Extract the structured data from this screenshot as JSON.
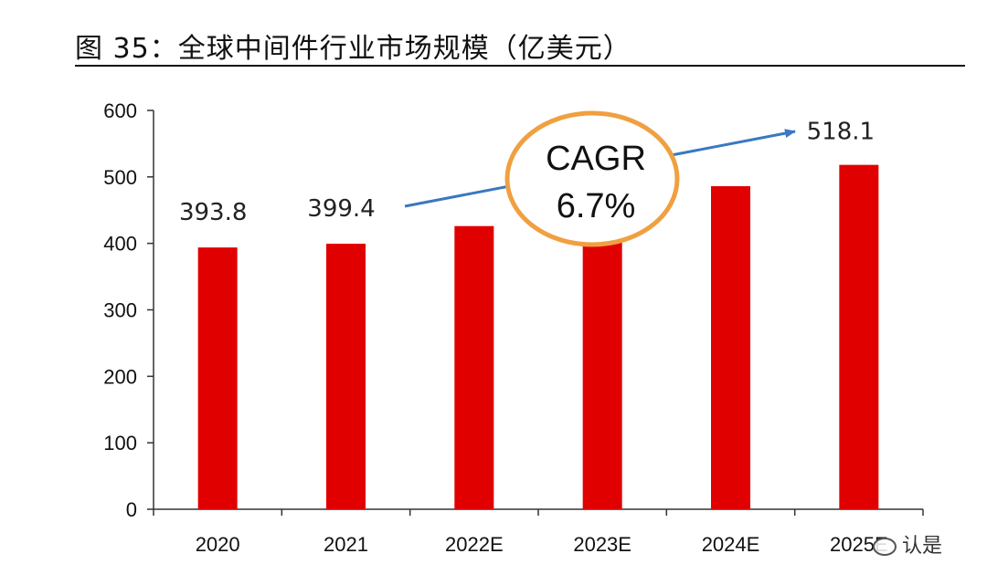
{
  "figure": {
    "title": "图 35：全球中间件行业市场规模（亿美元）",
    "watermark": "认是"
  },
  "chart_data": {
    "type": "bar",
    "categories": [
      "2020",
      "2021",
      "2022E",
      "2023E",
      "2024E",
      "2025E"
    ],
    "values": [
      393.8,
      399.4,
      426,
      455,
      486,
      518.1
    ],
    "data_labels": [
      "393.8",
      "399.4",
      "",
      "",
      "",
      "518.1"
    ],
    "ylim": [
      0,
      600
    ],
    "yticks": [
      0,
      100,
      200,
      300,
      400,
      500,
      600
    ],
    "bar_color": "#e00000",
    "grid": false,
    "legend": "none",
    "annotation": {
      "line1": "CAGR",
      "line2": "6.7%",
      "ellipse_color": "#f0a040",
      "arrow_color": "#3a78c0"
    }
  }
}
